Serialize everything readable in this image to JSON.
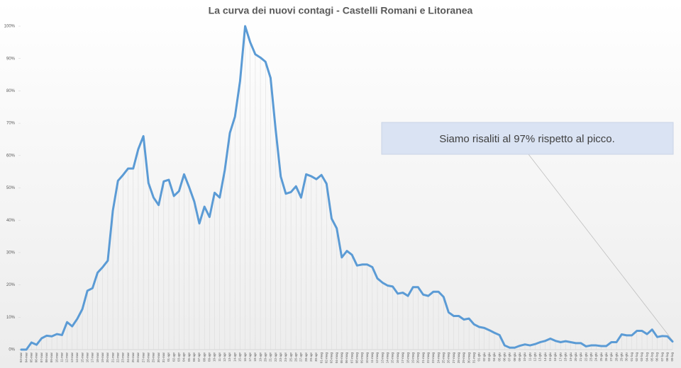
{
  "chart_data": {
    "type": "line",
    "title": "La curva dei nuovi contagi - Castelli Romani e Litoranea",
    "annotation": "Siamo risaliti al 97% rispetto al picco.",
    "categories": [
      "03-mar",
      "04-mar",
      "05-mar",
      "06-mar",
      "07-mar",
      "08-mar",
      "09-mar",
      "10-mar",
      "11-mar",
      "12-mar",
      "13-mar",
      "14-mar",
      "15-mar",
      "16-mar",
      "17-mar",
      "18-mar",
      "19-mar",
      "20-mar",
      "21-mar",
      "22-mar",
      "23-mar",
      "24-mar",
      "25-mar",
      "26-mar",
      "27-mar",
      "28-mar",
      "29-mar",
      "30-mar",
      "31-mar",
      "01-apr",
      "02-apr",
      "03-apr",
      "04-apr",
      "05-apr",
      "06-apr",
      "07-apr",
      "08-apr",
      "09-apr",
      "10-apr",
      "11-apr",
      "12-apr",
      "13-apr",
      "14-apr",
      "15-apr",
      "16-apr",
      "17-apr",
      "18-apr",
      "19-apr",
      "20-apr",
      "21-apr",
      "22-apr",
      "23-apr",
      "24-apr",
      "25-apr",
      "26-apr",
      "27-apr",
      "28-apr",
      "29-apr",
      "30-apr",
      "01-mag",
      "02-mag",
      "03-mag",
      "04-mag",
      "05-mag",
      "06-mag",
      "07-mag",
      "08-mag",
      "09-mag",
      "10-mag",
      "11-mag",
      "12-mag",
      "13-mag",
      "14-mag",
      "15-mag",
      "16-mag",
      "17-mag",
      "18-mag",
      "19-mag",
      "20-mag",
      "21-mag",
      "22-mag",
      "23-mag",
      "24-mag",
      "25-mag",
      "26-mag",
      "27-mag",
      "28-mag",
      "29-mag",
      "30-mag",
      "31-mag",
      "01-giu",
      "02-giu",
      "03-giu",
      "04-giu",
      "05-giu",
      "06-giu",
      "07-giu",
      "08-giu",
      "09-giu",
      "10-giu",
      "11-giu",
      "12-giu",
      "13-giu",
      "14-giu",
      "15-giu",
      "16-giu",
      "17-giu",
      "18-giu",
      "19-giu",
      "20-giu",
      "21-giu",
      "22-giu",
      "23-giu",
      "24-giu",
      "25-giu",
      "26-giu",
      "27-giu",
      "28-giu",
      "29-giu",
      "30-giu",
      "01-lug",
      "02-lug",
      "03-lug",
      "04-lug",
      "05-lug",
      "06-lug",
      "07-lug",
      "08-lug",
      "09-lug"
    ],
    "series": [
      {
        "color": "#5b9bd5",
        "values": [
          0,
          0,
          2.2,
          1.5,
          3.5,
          4.3,
          4.1,
          4.8,
          4.5,
          8.5,
          7.2,
          9.5,
          12.5,
          18.2,
          19,
          23.8,
          25.5,
          27.5,
          43,
          52.2,
          54,
          56,
          56,
          62,
          66,
          51.5,
          47,
          44.7,
          52,
          52.5,
          47.5,
          49,
          54.2,
          50.2,
          45.8,
          39,
          44.2,
          41,
          48.5,
          47,
          55.5,
          67,
          72,
          83,
          100,
          95,
          91.3,
          90.3,
          89,
          84,
          68,
          53.5,
          48.2,
          48.7,
          50.5,
          47,
          54.2,
          53.6,
          52.7,
          54,
          51.3,
          40.5,
          37.5,
          28.5,
          30.5,
          29.3,
          26,
          26.3,
          26.3,
          25.5,
          22,
          20.7,
          19.8,
          19.5,
          17.3,
          17.6,
          16.6,
          19.3,
          19.3,
          17,
          16.6,
          17.9,
          17.9,
          16.3,
          11.5,
          10.4,
          10.4,
          9.3,
          9.6,
          7.8,
          7,
          6.7,
          6,
          5.2,
          4.5,
          1.3,
          0.6,
          0.6,
          1.2,
          1.6,
          1.3,
          1.7,
          2.3,
          2.7,
          3.4,
          2.7,
          2.3,
          2.6,
          2.3,
          2,
          2,
          1,
          1.3,
          1.3,
          1.1,
          1.1,
          2.3,
          2.3,
          4.7,
          4.4,
          4.4,
          5.8,
          5.8,
          4.8,
          6.2,
          3.9,
          4.2,
          4.1,
          2.5
        ]
      }
    ],
    "ylim": [
      0,
      100
    ],
    "yticks": [
      {
        "value": 0,
        "label": "0%"
      },
      {
        "value": 10,
        "label": "10%"
      },
      {
        "value": 20,
        "label": "20%"
      },
      {
        "value": 30,
        "label": "30%"
      },
      {
        "value": 40,
        "label": "40%"
      },
      {
        "value": 50,
        "label": "50%"
      },
      {
        "value": 60,
        "label": "60%"
      },
      {
        "value": 70,
        "label": "70%"
      },
      {
        "value": 80,
        "label": "80%"
      },
      {
        "value": 90,
        "label": "90%"
      },
      {
        "value": 100,
        "label": "100%"
      }
    ]
  }
}
